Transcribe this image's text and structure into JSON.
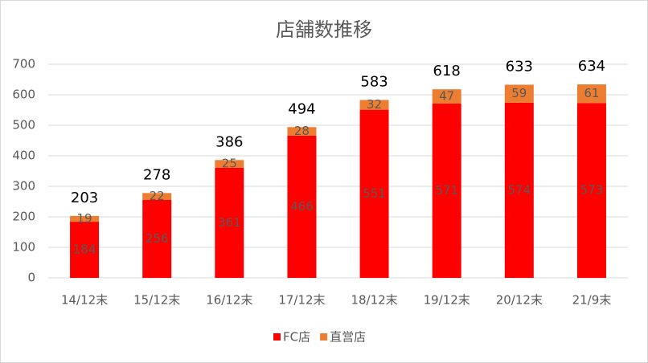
{
  "chart_data": {
    "type": "stacked_bar",
    "title": "店舗数推移",
    "categories": [
      "14/12末",
      "15/12末",
      "16/12末",
      "17/12末",
      "18/12末",
      "19/12末",
      "20/12末",
      "21/9末"
    ],
    "series": [
      {
        "name": "FC店",
        "color": "#ff0000",
        "values": [
          184,
          256,
          361,
          466,
          551,
          571,
          574,
          573
        ]
      },
      {
        "name": "直営店",
        "color": "#ed7d31",
        "values": [
          19,
          22,
          25,
          28,
          32,
          47,
          59,
          61
        ]
      }
    ],
    "totals": [
      203,
      278,
      386,
      494,
      583,
      618,
      633,
      634
    ],
    "ylim": [
      0,
      700
    ],
    "yticks": [
      0,
      100,
      200,
      300,
      400,
      500,
      600,
      700
    ],
    "grid": true,
    "legend": "bottom"
  }
}
